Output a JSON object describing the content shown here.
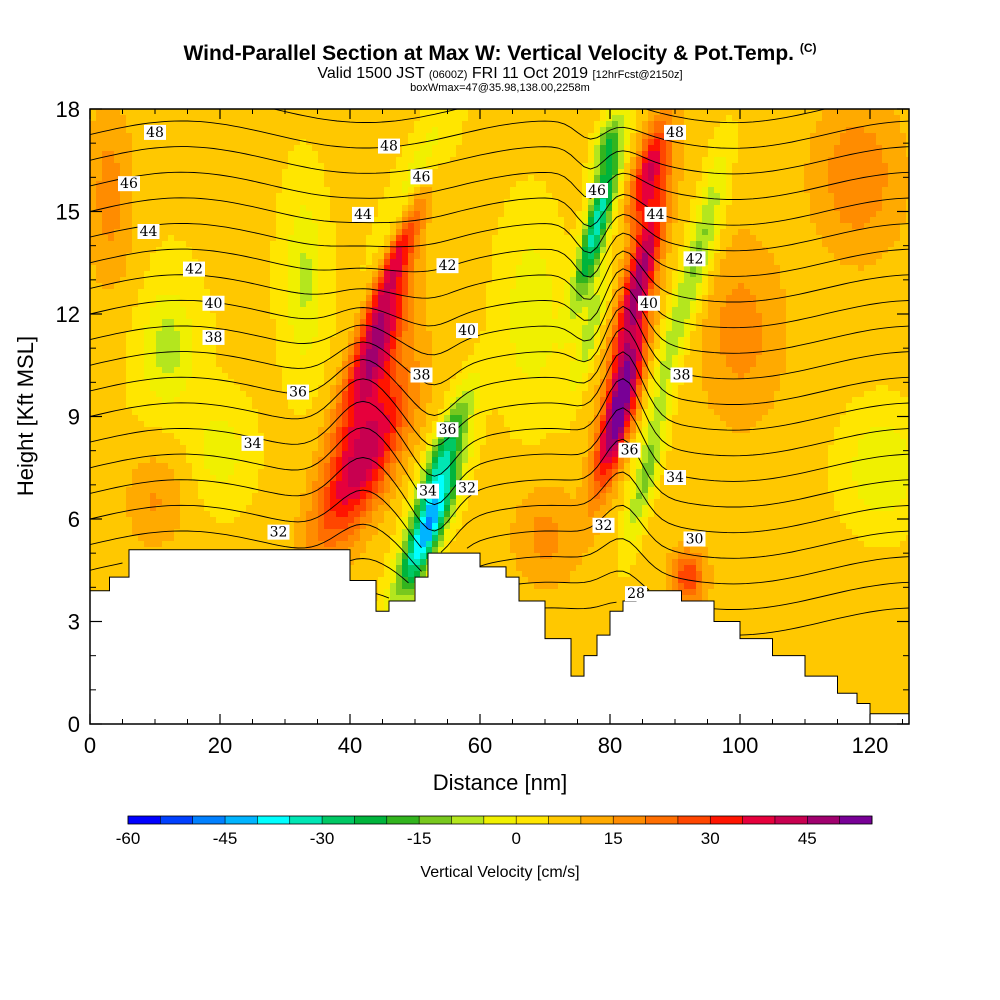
{
  "header": {
    "title": "Wind-Parallel Section at Max W: Vertical Velocity & Pot.Temp.",
    "copyright": "(C)",
    "valid_prefix": "Valid 1500 JST",
    "valid_zulu": "(0600Z)",
    "valid_date": "FRI 11 Oct 2019",
    "forecast_tag": "[12hrFcst@2150z]",
    "box_info": "boxWmax=47@35.98,138.00,2258m"
  },
  "chart_data": {
    "type": "heatmap",
    "xlabel": "Distance [nm]",
    "ylabel": "Height [Kft MSL]",
    "xlim": [
      0,
      126
    ],
    "ylim": [
      0,
      18
    ],
    "x_ticks": [
      0,
      20,
      40,
      60,
      80,
      100,
      120
    ],
    "y_ticks": [
      0,
      3,
      6,
      9,
      12,
      15,
      18
    ],
    "colorbar": {
      "label": "Vertical Velocity [cm/s]",
      "min": -60,
      "max": 55,
      "step": 5,
      "tick_values": [
        -60,
        -45,
        -30,
        -15,
        0,
        15,
        30,
        45
      ],
      "colors": [
        "#0000ff",
        "#0040ff",
        "#0080ff",
        "#00b4ff",
        "#00ffff",
        "#00e6b4",
        "#00c864",
        "#00b43c",
        "#32b41e",
        "#78c81e",
        "#b4e61e",
        "#f0f000",
        "#ffe600",
        "#ffc800",
        "#ffaa00",
        "#ff8c00",
        "#ff6e00",
        "#ff4600",
        "#ff1400",
        "#e6003c",
        "#c80050",
        "#a0006e",
        "#780096"
      ]
    },
    "terrain_profile": {
      "x": [
        0,
        3,
        3,
        6,
        6,
        40,
        40,
        44,
        44,
        46,
        46,
        50,
        50,
        52,
        52,
        60,
        60,
        64,
        64,
        66,
        66,
        70,
        70,
        74,
        74,
        76,
        76,
        78,
        78,
        80,
        80,
        82,
        82,
        84,
        84,
        88,
        88,
        91,
        91,
        96,
        96,
        100,
        100,
        105,
        105,
        110,
        110,
        115,
        115,
        118,
        118,
        120,
        120,
        126
      ],
      "height": [
        3.9,
        3.9,
        4.3,
        4.3,
        5.1,
        5.1,
        4.2,
        4.2,
        3.3,
        3.3,
        3.6,
        3.6,
        4.3,
        4.3,
        5.0,
        5.0,
        4.6,
        4.6,
        4.3,
        4.3,
        3.6,
        3.6,
        2.5,
        2.5,
        1.4,
        1.4,
        2.0,
        2.0,
        2.6,
        2.6,
        3.3,
        3.3,
        3.6,
        3.6,
        3.9,
        3.9,
        3.9,
        3.9,
        3.6,
        3.6,
        3.0,
        3.0,
        2.5,
        2.5,
        2.0,
        2.0,
        1.4,
        1.4,
        0.9,
        0.9,
        0.6,
        0.6,
        0.3,
        0.3
      ]
    },
    "w_features": [
      {
        "x": 42,
        "y": 7.8,
        "sx": 5,
        "sy": 2.6,
        "w": 38,
        "shear": 2.0
      },
      {
        "x": 44,
        "y": 11.0,
        "sx": 3,
        "sy": 2.0,
        "w": 36,
        "shear": 2.0
      },
      {
        "x": 47.5,
        "y": 13.8,
        "sx": 2.2,
        "sy": 2.2,
        "w": 36,
        "shear": 2.0
      },
      {
        "x": 52,
        "y": 5.7,
        "sx": 2.5,
        "sy": 1.9,
        "w": -50,
        "shear": 2.0
      },
      {
        "x": 54.5,
        "y": 8.0,
        "sx": 2.2,
        "sy": 1.8,
        "w": -30,
        "shear": 2.0
      },
      {
        "x": 50,
        "y": 15.5,
        "sx": 3,
        "sy": 2.5,
        "w": -15,
        "shear": 2.0
      },
      {
        "x": 78,
        "y": 14.6,
        "sx": 1.8,
        "sy": 2.3,
        "w": -40,
        "shear": 1.3
      },
      {
        "x": 79.5,
        "y": 17.0,
        "sx": 1.8,
        "sy": 1.0,
        "w": -20,
        "shear": 1.3
      },
      {
        "x": 77,
        "y": 11.5,
        "sx": 1.5,
        "sy": 1.8,
        "w": -15,
        "shear": 1.3
      },
      {
        "x": 81.5,
        "y": 9.2,
        "sx": 2.2,
        "sy": 2.2,
        "w": 50,
        "shear": 1.3
      },
      {
        "x": 84.5,
        "y": 13.0,
        "sx": 2.2,
        "sy": 2.6,
        "w": 40,
        "shear": 1.3
      },
      {
        "x": 86,
        "y": 16.2,
        "sx": 2.2,
        "sy": 1.5,
        "w": 32,
        "shear": 1.3
      },
      {
        "x": 85.5,
        "y": 7.2,
        "sx": 1.8,
        "sy": 2.0,
        "w": -18,
        "shear": 1.3
      },
      {
        "x": 90,
        "y": 11.5,
        "sx": 2.0,
        "sy": 3.0,
        "w": -15,
        "shear": 1.3
      },
      {
        "x": 95,
        "y": 14.5,
        "sx": 2.2,
        "sy": 2.5,
        "w": -14,
        "shear": 1.0
      },
      {
        "x": 12,
        "y": 11.0,
        "sx": 4,
        "sy": 1.7,
        "w": -13,
        "shear": 0
      },
      {
        "x": 33,
        "y": 13.0,
        "sx": 3,
        "sy": 2.5,
        "w": -12,
        "shear": 0
      },
      {
        "x": 122,
        "y": 7.5,
        "sx": 7,
        "sy": 2.0,
        "w": -12,
        "shear": 0
      },
      {
        "x": 20,
        "y": 8.0,
        "sx": 4,
        "sy": 1.3,
        "w": -9,
        "shear": 0
      },
      {
        "x": 68,
        "y": 12.0,
        "sx": 5,
        "sy": 3.0,
        "w": -10,
        "shear": 0
      },
      {
        "x": 118,
        "y": 16.0,
        "sx": 6,
        "sy": 2.0,
        "w": 12,
        "shear": 0
      },
      {
        "x": 3,
        "y": 15.5,
        "sx": 4,
        "sy": 3.0,
        "w": 12,
        "shear": 0
      },
      {
        "x": 10,
        "y": 6.5,
        "sx": 5,
        "sy": 1.5,
        "w": 10,
        "shear": 0
      },
      {
        "x": 70,
        "y": 5.5,
        "sx": 5,
        "sy": 1.5,
        "w": 10,
        "shear": 0
      },
      {
        "x": 100,
        "y": 11.5,
        "sx": 6,
        "sy": 2.5,
        "w": 10,
        "shear": 0
      },
      {
        "x": 92,
        "y": 4.3,
        "sx": 2.5,
        "sy": 0.8,
        "w": 22,
        "shear": 0
      }
    ],
    "theta_contours": {
      "start": 28,
      "end": 49,
      "step": 1,
      "label_positions": [
        {
          "x": 10,
          "y": 17.3,
          "v": 48
        },
        {
          "x": 46,
          "y": 16.9,
          "v": 48
        },
        {
          "x": 90,
          "y": 17.3,
          "v": 48
        },
        {
          "x": 6,
          "y": 15.8,
          "v": 46
        },
        {
          "x": 51,
          "y": 16.0,
          "v": 46
        },
        {
          "x": 78,
          "y": 15.6,
          "v": 46
        },
        {
          "x": 9,
          "y": 14.4,
          "v": 44
        },
        {
          "x": 42,
          "y": 14.9,
          "v": 44
        },
        {
          "x": 87,
          "y": 14.9,
          "v": 44
        },
        {
          "x": 16,
          "y": 13.3,
          "v": 42
        },
        {
          "x": 55,
          "y": 13.4,
          "v": 42
        },
        {
          "x": 93,
          "y": 13.6,
          "v": 42
        },
        {
          "x": 19,
          "y": 12.3,
          "v": 40
        },
        {
          "x": 58,
          "y": 11.5,
          "v": 40
        },
        {
          "x": 86,
          "y": 12.3,
          "v": 40
        },
        {
          "x": 19,
          "y": 11.3,
          "v": 38
        },
        {
          "x": 51,
          "y": 10.2,
          "v": 38
        },
        {
          "x": 91,
          "y": 10.2,
          "v": 38
        },
        {
          "x": 32,
          "y": 9.7,
          "v": 36
        },
        {
          "x": 55,
          "y": 8.6,
          "v": 36
        },
        {
          "x": 83,
          "y": 8.0,
          "v": 36
        },
        {
          "x": 25,
          "y": 8.2,
          "v": 34
        },
        {
          "x": 52,
          "y": 6.8,
          "v": 34
        },
        {
          "x": 90,
          "y": 7.2,
          "v": 34
        },
        {
          "x": 29,
          "y": 5.6,
          "v": 32
        },
        {
          "x": 58,
          "y": 6.9,
          "v": 32
        },
        {
          "x": 79,
          "y": 5.8,
          "v": 32
        },
        {
          "x": 93,
          "y": 5.4,
          "v": 30
        },
        {
          "x": 84,
          "y": 3.8,
          "v": 28
        }
      ]
    }
  }
}
